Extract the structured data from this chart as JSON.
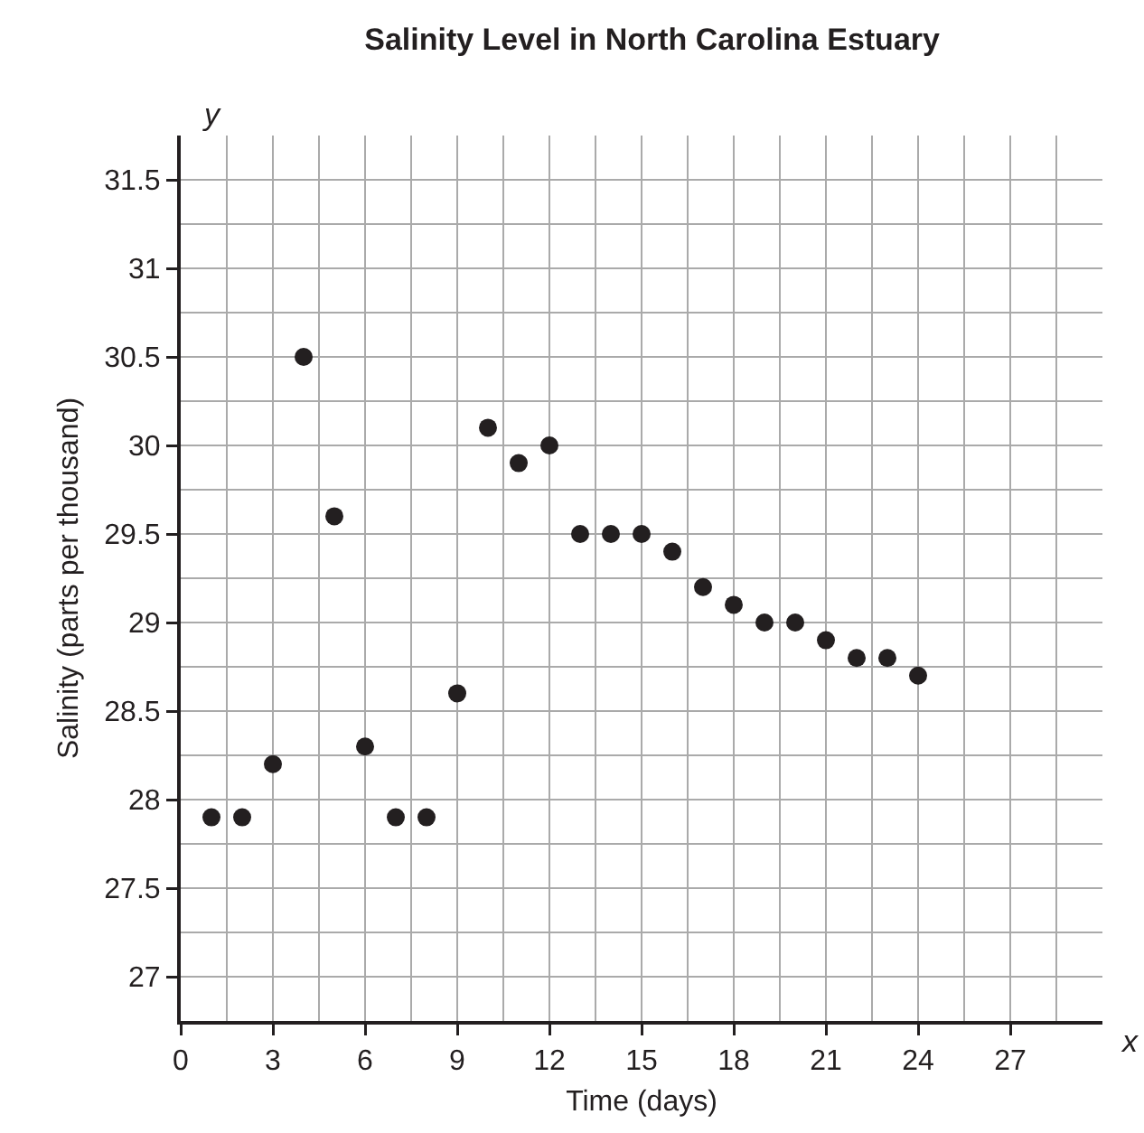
{
  "chart_data": {
    "type": "scatter",
    "title": "Salinity Level in North Carolina Estuary",
    "xlabel": "Time (days)",
    "ylabel": "Salinity (parts per thousand)",
    "annotations": [
      "x",
      "y"
    ],
    "x": [
      1,
      2,
      3,
      4,
      5,
      6,
      7,
      8,
      9,
      10,
      11,
      12,
      13,
      14,
      15,
      16,
      17,
      18,
      19,
      20,
      21,
      22,
      23,
      24
    ],
    "series": [
      {
        "color": "#231f20",
        "values": [
          27.9,
          27.9,
          28.2,
          30.5,
          29.6,
          28.3,
          27.9,
          27.9,
          28.6,
          30.1,
          29.9,
          30,
          29.5,
          29.5,
          29.5,
          29.4,
          29.2,
          29.1,
          29,
          29,
          28.9,
          28.8,
          28.8,
          28.7
        ]
      }
    ],
    "xlim": [
      0,
      30
    ],
    "xticks": [
      0,
      3,
      6,
      9,
      12,
      15,
      18,
      21,
      24,
      27
    ],
    "ylim": [
      26.75,
      31.75
    ],
    "yticks": [
      27,
      27.5,
      28,
      28.5,
      29,
      29.5,
      30,
      30.5,
      31,
      31.5
    ],
    "grid": true,
    "marker": "circle"
  }
}
